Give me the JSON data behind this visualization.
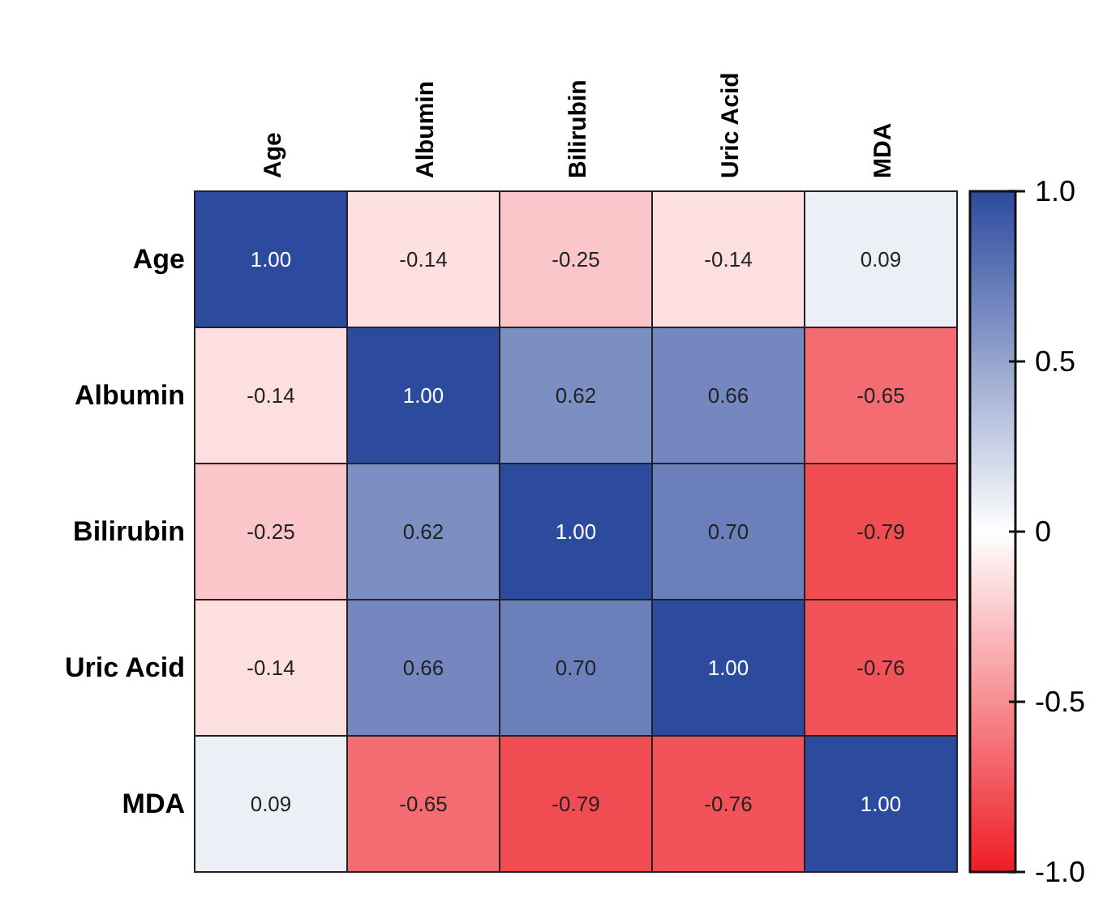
{
  "chart_data": {
    "type": "heatmap",
    "categories": [
      "Age",
      "Albumin",
      "Bilirubin",
      "Uric Acid",
      "MDA"
    ],
    "y_categories": [
      "Age",
      "Albumin",
      "Bilirubin",
      "Uric Acid",
      "MDA"
    ],
    "cells": [
      [
        1,
        -0.14,
        -0.25,
        -0.14,
        0.09
      ],
      [
        -0.14,
        1,
        0.62,
        0.66,
        -0.65
      ],
      [
        -0.25,
        0.62,
        1,
        0.7,
        -0.79
      ],
      [
        -0.14,
        0.66,
        0.7,
        1,
        -0.76
      ],
      [
        0.09,
        -0.65,
        -0.79,
        -0.76,
        1
      ]
    ],
    "cell_labels": [
      [
        "1.00",
        "-0.14",
        "-0.25",
        "-0.14",
        "0.09"
      ],
      [
        "-0.14",
        "1.00",
        "0.62",
        "0.66",
        "-0.65"
      ],
      [
        "-0.25",
        "0.62",
        "1.00",
        "0.70",
        "-0.79"
      ],
      [
        "-0.14",
        "0.66",
        "0.70",
        "1.00",
        "-0.76"
      ],
      [
        "0.09",
        "-0.65",
        "-0.79",
        "-0.76",
        "1.00"
      ]
    ],
    "clim": [
      -1,
      1
    ],
    "cticks": [
      {
        "value": 1,
        "label": "1.0"
      },
      0.5,
      0,
      -0.5,
      {
        "value": -1,
        "label": "-1.0"
      }
    ]
  }
}
